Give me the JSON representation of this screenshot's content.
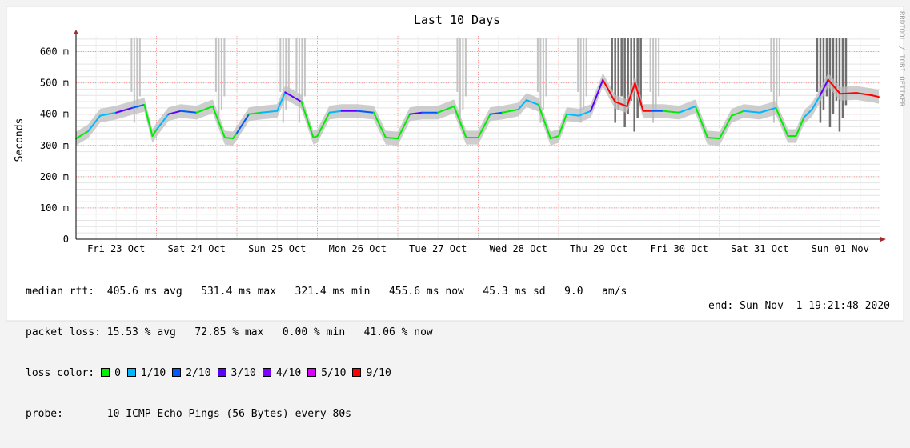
{
  "title": "Last 10 Days",
  "side_label": "RRDTOOL / TOBI OETIKER",
  "chart_data": {
    "type": "line",
    "title": "Last 10 Days",
    "ylabel": "Seconds",
    "xlabel": "",
    "ylim": [
      0,
      650
    ],
    "yticks": [
      {
        "value": 0,
        "label": "0"
      },
      {
        "value": 100,
        "label": "100 m"
      },
      {
        "value": 200,
        "label": "200 m"
      },
      {
        "value": 300,
        "label": "300 m"
      },
      {
        "value": 400,
        "label": "400 m"
      },
      {
        "value": 500,
        "label": "500 m"
      },
      {
        "value": 600,
        "label": "600 m"
      }
    ],
    "xlim": [
      0,
      10
    ],
    "day_labels": [
      {
        "value": 0.5,
        "label": "Fri 23 Oct"
      },
      {
        "value": 1.5,
        "label": "Sat 24 Oct"
      },
      {
        "value": 2.5,
        "label": "Sun 25 Oct"
      },
      {
        "value": 3.5,
        "label": "Mon 26 Oct"
      },
      {
        "value": 4.5,
        "label": "Tue 27 Oct"
      },
      {
        "value": 5.5,
        "label": "Wed 28 Oct"
      },
      {
        "value": 6.5,
        "label": "Thu 29 Oct"
      },
      {
        "value": 7.5,
        "label": "Fri 30 Oct"
      },
      {
        "value": 8.5,
        "label": "Sat 31 Oct"
      },
      {
        "value": 9.5,
        "label": "Sun 01 Nov"
      }
    ],
    "grid": true,
    "series": [
      {
        "name": "median rtt",
        "x": [
          0.0,
          0.15,
          0.3,
          0.5,
          0.7,
          0.85,
          0.95,
          1.0,
          1.15,
          1.3,
          1.5,
          1.7,
          1.85,
          1.95,
          2.0,
          2.15,
          2.3,
          2.5,
          2.6,
          2.8,
          2.95,
          3.0,
          3.15,
          3.3,
          3.5,
          3.7,
          3.85,
          4.0,
          4.15,
          4.3,
          4.5,
          4.7,
          4.85,
          5.0,
          5.15,
          5.3,
          5.5,
          5.6,
          5.75,
          5.9,
          6.0,
          6.1,
          6.25,
          6.4,
          6.55,
          6.7,
          6.85,
          6.95,
          7.05,
          7.15,
          7.3,
          7.5,
          7.7,
          7.85,
          8.0,
          8.15,
          8.3,
          8.5,
          8.7,
          8.85,
          8.95,
          9.05,
          9.15,
          9.25,
          9.35,
          9.5,
          9.7,
          9.9,
          9.98
        ],
        "y": [
          322,
          345,
          395,
          405,
          420,
          430,
          330,
          350,
          400,
          410,
          405,
          425,
          325,
          322,
          340,
          400,
          405,
          410,
          470,
          440,
          325,
          330,
          405,
          410,
          410,
          405,
          325,
          322,
          400,
          405,
          405,
          425,
          325,
          325,
          400,
          405,
          415,
          445,
          430,
          322,
          330,
          400,
          395,
          410,
          510,
          440,
          425,
          500,
          410,
          410,
          410,
          405,
          425,
          325,
          322,
          395,
          410,
          405,
          420,
          330,
          330,
          390,
          415,
          460,
          510,
          465,
          468,
          460,
          455
        ]
      }
    ],
    "packet_loss_spikes": [
      {
        "x": 0.75,
        "loss": "partial"
      },
      {
        "x": 1.8,
        "loss": "partial"
      },
      {
        "x": 2.6,
        "loss": "partial"
      },
      {
        "x": 2.8,
        "loss": "partial"
      },
      {
        "x": 4.8,
        "loss": "partial"
      },
      {
        "x": 5.8,
        "loss": "partial"
      },
      {
        "x": 6.3,
        "loss": "partial"
      },
      {
        "x": 6.85,
        "loss": "high"
      },
      {
        "x": 7.2,
        "loss": "partial"
      },
      {
        "x": 8.7,
        "loss": "partial"
      },
      {
        "x": 9.4,
        "loss": "high"
      }
    ]
  },
  "stats": {
    "rtt_label": "median rtt:",
    "rtt_text": "405.6 ms avg   531.4 ms max   321.4 ms min   455.6 ms now   45.3 ms sd   9.0   am/s",
    "loss_label": "packet loss:",
    "loss_text": "15.53 % avg   72.85 % max   0.00 % min   41.06 % now",
    "color_label": "loss color:",
    "loss_colors": [
      {
        "label": "0",
        "color": "#00ee00"
      },
      {
        "label": "1/10",
        "color": "#00b8ff"
      },
      {
        "label": "2/10",
        "color": "#0059ff"
      },
      {
        "label": "3/10",
        "color": "#5e00ff"
      },
      {
        "label": "4/10",
        "color": "#7e00ff"
      },
      {
        "label": "5/10",
        "color": "#dd00ff"
      },
      {
        "label": "9/10",
        "color": "#ff0000"
      }
    ],
    "probe_label": "probe:",
    "probe_text": "10 ICMP Echo Pings (56 Bytes) every 80s",
    "end_text": "end: Sun Nov  1 19:21:48 2020"
  }
}
